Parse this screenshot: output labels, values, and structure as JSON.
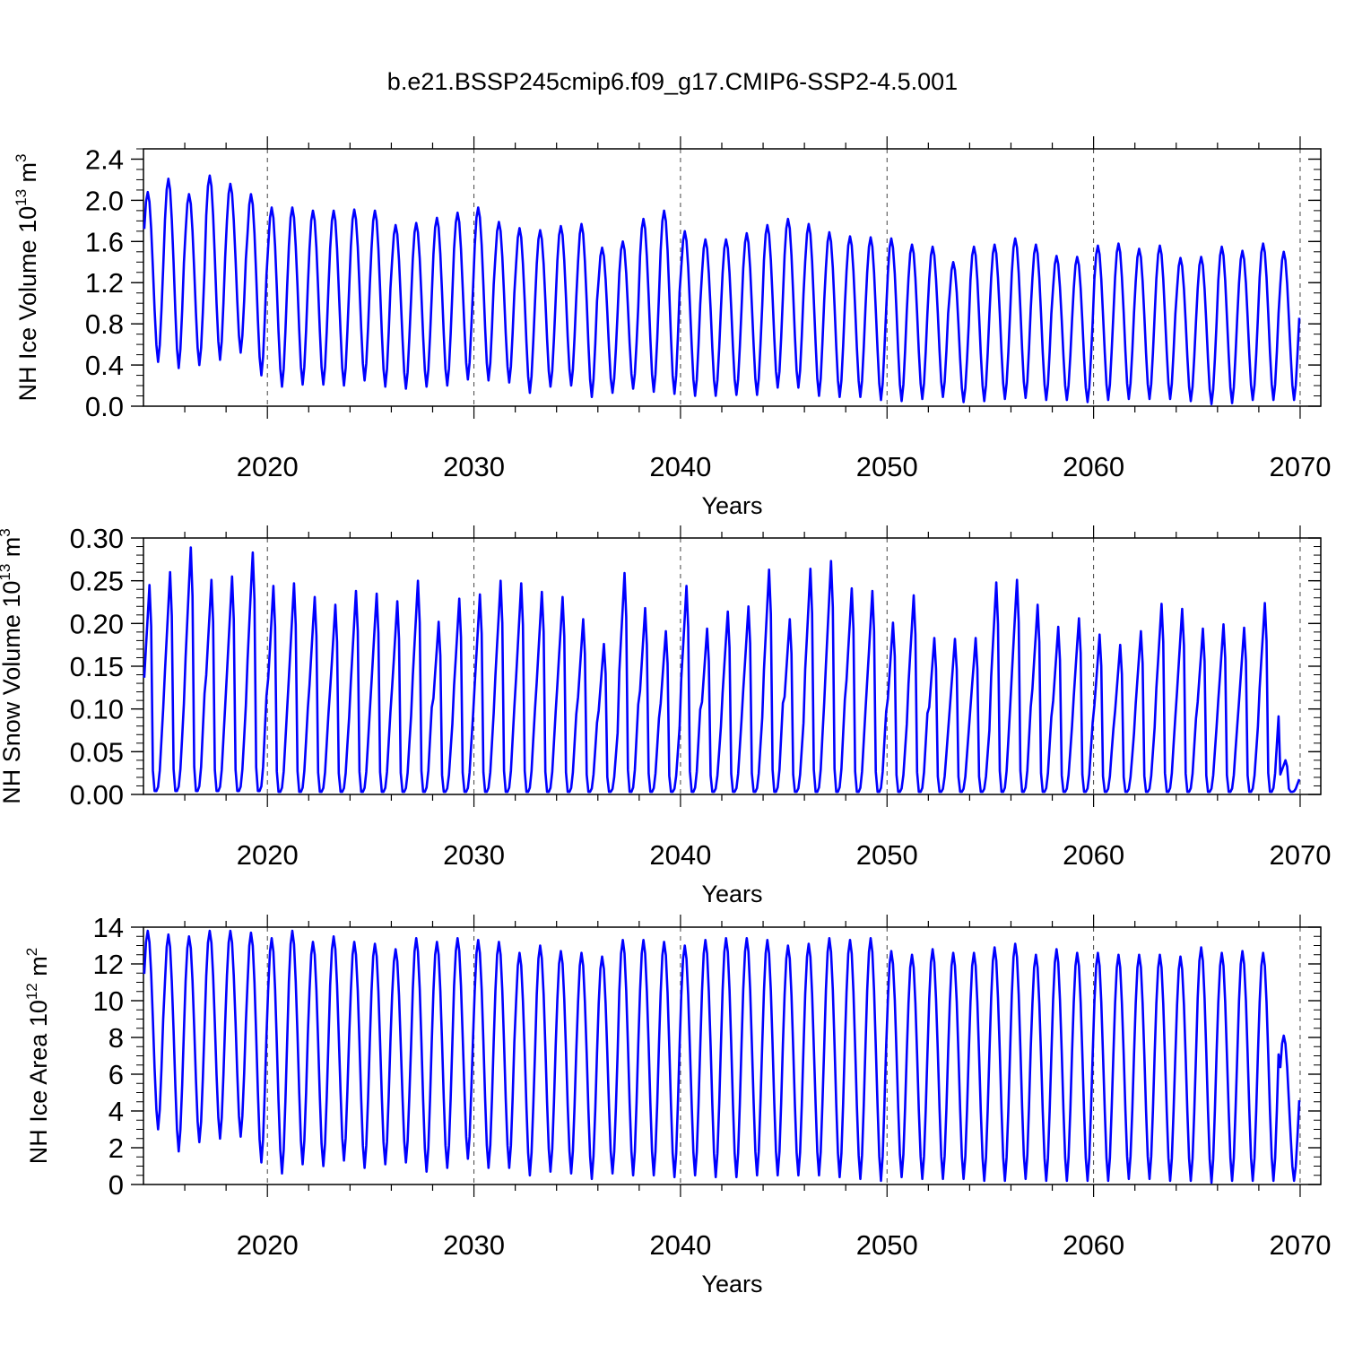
{
  "title": "b.e21.BSSP245cmip6.f09_g17.CMIP6-SSP2-4.5.001",
  "line_color": "#0000ff",
  "chart_data": [
    {
      "type": "line",
      "name": "panel-ice-volume",
      "ylabel": "NH Ice Volume 10",
      "ylabel_exp": "13",
      "ylabel_unit": " m",
      "ylabel_unit_exp": "3",
      "xlabel": "Years",
      "xlim": [
        2014,
        2071
      ],
      "ylim": [
        0,
        2.5
      ],
      "yticks": [
        "0.0",
        "0.4",
        "0.8",
        "1.2",
        "1.6",
        "2.0",
        "2.4"
      ],
      "ytick_values": [
        0,
        0.4,
        0.8,
        1.2,
        1.6,
        2.0,
        2.4
      ],
      "xticks": [
        "2020",
        "2030",
        "2040",
        "2050",
        "2060",
        "2070"
      ],
      "xtick_values": [
        2020,
        2030,
        2040,
        2050,
        2060,
        2070
      ],
      "series": [
        {
          "name": "NH ice volume",
          "start_year": 2014.04,
          "annual_max": [
            2.08,
            2.21,
            2.06,
            2.24,
            2.16,
            2.06,
            1.93,
            1.93,
            1.9,
            1.9,
            1.91,
            1.9,
            1.76,
            1.78,
            1.83,
            1.88,
            1.93,
            1.79,
            1.73,
            1.71,
            1.75,
            1.77,
            1.54,
            1.6,
            1.82,
            1.9,
            1.7,
            1.62,
            1.62,
            1.68,
            1.76,
            1.82,
            1.77,
            1.69,
            1.65,
            1.64,
            1.63,
            1.57,
            1.55,
            1.4,
            1.55,
            1.57,
            1.63,
            1.57,
            1.46,
            1.45,
            1.56,
            1.58,
            1.53,
            1.56,
            1.44,
            1.45,
            1.55,
            1.51,
            1.58,
            1.5
          ],
          "annual_min": [
            0.43,
            0.37,
            0.4,
            0.45,
            0.52,
            0.3,
            0.19,
            0.21,
            0.21,
            0.2,
            0.25,
            0.19,
            0.17,
            0.19,
            0.2,
            0.26,
            0.25,
            0.23,
            0.13,
            0.19,
            0.2,
            0.09,
            0.13,
            0.17,
            0.14,
            0.12,
            0.1,
            0.1,
            0.11,
            0.11,
            0.18,
            0.18,
            0.1,
            0.09,
            0.09,
            0.06,
            0.05,
            0.07,
            0.09,
            0.04,
            0.05,
            0.07,
            0.08,
            0.06,
            0.06,
            0.04,
            0.06,
            0.07,
            0.07,
            0.07,
            0.05,
            0.02,
            0.03,
            0.06,
            0.06,
            0.06
          ]
        }
      ]
    },
    {
      "type": "line",
      "name": "panel-snow-volume",
      "ylabel": "NH Snow Volume 10",
      "ylabel_exp": "13",
      "ylabel_unit": " m",
      "ylabel_unit_exp": "3",
      "xlabel": "Years",
      "xlim": [
        2014,
        2071
      ],
      "ylim": [
        0,
        0.3
      ],
      "yticks": [
        "0.00",
        "0.05",
        "0.10",
        "0.15",
        "0.20",
        "0.25",
        "0.30"
      ],
      "ytick_values": [
        0,
        0.05,
        0.1,
        0.15,
        0.2,
        0.25,
        0.3
      ],
      "xticks": [
        "2020",
        "2030",
        "2040",
        "2050",
        "2060",
        "2070"
      ],
      "xtick_values": [
        2020,
        2030,
        2040,
        2050,
        2060,
        2070
      ],
      "series": [
        {
          "name": "NH snow volume",
          "start_year": 2014.04,
          "annual_max": [
            0.245,
            0.26,
            0.289,
            0.251,
            0.255,
            0.283,
            0.244,
            0.247,
            0.231,
            0.222,
            0.238,
            0.235,
            0.226,
            0.25,
            0.202,
            0.229,
            0.234,
            0.25,
            0.247,
            0.237,
            0.231,
            0.205,
            0.176,
            0.259,
            0.218,
            0.191,
            0.244,
            0.194,
            0.214,
            0.22,
            0.263,
            0.205,
            0.264,
            0.273,
            0.241,
            0.238,
            0.201,
            0.233,
            0.183,
            0.182,
            0.183,
            0.248,
            0.251,
            0.222,
            0.196,
            0.206,
            0.187,
            0.175,
            0.191,
            0.223,
            0.217,
            0.194,
            0.199,
            0.195,
            0.224,
            0.04
          ],
          "annual_min": [
            0.004,
            0.004,
            0.004,
            0.004,
            0.004,
            0.004,
            0.003,
            0.003,
            0.003,
            0.003,
            0.003,
            0.003,
            0.003,
            0.003,
            0.003,
            0.003,
            0.003,
            0.003,
            0.003,
            0.003,
            0.003,
            0.003,
            0.003,
            0.003,
            0.003,
            0.003,
            0.003,
            0.003,
            0.003,
            0.003,
            0.003,
            0.003,
            0.003,
            0.003,
            0.003,
            0.003,
            0.003,
            0.003,
            0.003,
            0.003,
            0.003,
            0.003,
            0.003,
            0.003,
            0.003,
            0.003,
            0.003,
            0.003,
            0.003,
            0.003,
            0.003,
            0.003,
            0.003,
            0.003,
            0.003,
            0.003
          ]
        }
      ]
    },
    {
      "type": "line",
      "name": "panel-ice-area",
      "ylabel": "NH Ice Area 10",
      "ylabel_exp": "12",
      "ylabel_unit": " m",
      "ylabel_unit_exp": "2",
      "xlabel": "Years",
      "xlim": [
        2014,
        2071
      ],
      "ylim": [
        0,
        14
      ],
      "yticks": [
        "0",
        "2",
        "4",
        "6",
        "8",
        "10",
        "12",
        "14"
      ],
      "ytick_values": [
        0,
        2,
        4,
        6,
        8,
        10,
        12,
        14
      ],
      "xticks": [
        "2020",
        "2030",
        "2040",
        "2050",
        "2060",
        "2070"
      ],
      "xtick_values": [
        2020,
        2030,
        2040,
        2050,
        2060,
        2070
      ],
      "series": [
        {
          "name": "NH ice area",
          "start_year": 2014.04,
          "annual_max": [
            13.8,
            13.6,
            13.5,
            13.8,
            13.8,
            13.7,
            13.4,
            13.8,
            13.2,
            13.5,
            13.2,
            13.1,
            12.8,
            13.4,
            13.2,
            13.4,
            13.3,
            13.2,
            12.6,
            13.0,
            12.7,
            12.6,
            12.4,
            13.3,
            13.3,
            13.2,
            13.0,
            13.3,
            13.4,
            13.4,
            13.3,
            13.0,
            13.1,
            13.4,
            13.3,
            13.4,
            12.7,
            12.5,
            12.8,
            12.6,
            12.6,
            12.9,
            13.1,
            12.5,
            12.8,
            12.6,
            12.6,
            12.5,
            12.5,
            12.5,
            12.4,
            12.9,
            12.6,
            12.7,
            12.6,
            8.1
          ],
          "annual_min": [
            3.0,
            1.8,
            2.3,
            2.5,
            2.6,
            1.2,
            0.6,
            1.1,
            1.0,
            1.3,
            0.9,
            1.1,
            1.2,
            0.7,
            0.9,
            1.4,
            0.9,
            0.9,
            0.5,
            0.7,
            0.6,
            0.3,
            0.6,
            0.5,
            0.5,
            0.4,
            0.5,
            0.4,
            0.4,
            0.5,
            0.5,
            0.5,
            0.5,
            0.4,
            0.3,
            0.2,
            0.4,
            0.3,
            0.3,
            0.3,
            0.2,
            0.2,
            0.3,
            0.2,
            0.2,
            0.2,
            0.2,
            0.3,
            0.3,
            0.2,
            0.2,
            0.1,
            0.2,
            0.2,
            0.2,
            0.2
          ]
        }
      ]
    }
  ]
}
